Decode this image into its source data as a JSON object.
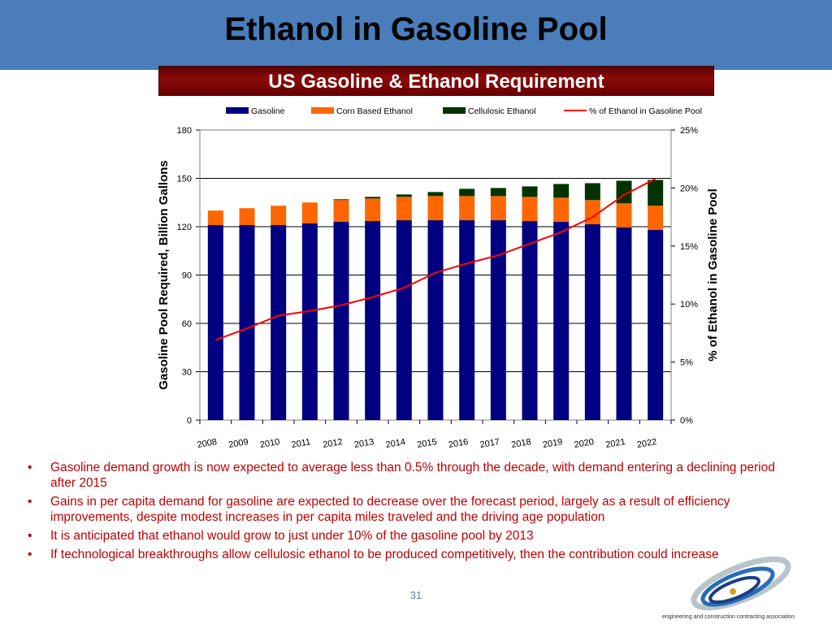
{
  "slide": {
    "title": "Ethanol in Gasoline Pool",
    "page_number": "31"
  },
  "chart_banner": "US Gasoline & Ethanol Requirement",
  "chart_data": {
    "type": "bar",
    "stacked": true,
    "title": "US Gasoline & Ethanol Requirement",
    "categories": [
      "2008",
      "2009",
      "2010",
      "2011",
      "2012",
      "2013",
      "2014",
      "2015",
      "2016",
      "2017",
      "2018",
      "2019",
      "2020",
      "2021",
      "2022"
    ],
    "series": [
      {
        "name": "Gasoline",
        "color": "#000080",
        "values": [
          121,
          121,
          121,
          122,
          123,
          123.5,
          124,
          124,
          124,
          124,
          123.5,
          123,
          121.5,
          119.5,
          118
        ]
      },
      {
        "name": "Corn Based Ethanol",
        "color": "#ff6600",
        "values": [
          9,
          10.5,
          12,
          13,
          13.5,
          14,
          14.5,
          15,
          15,
          15,
          15,
          15,
          15,
          15,
          15
        ]
      },
      {
        "name": "Cellulosic Ethanol",
        "color": "#003300",
        "values": [
          0,
          0,
          0,
          0,
          0.5,
          1,
          1.5,
          2.5,
          4.5,
          5,
          6.5,
          8.5,
          10.5,
          14,
          16
        ]
      }
    ],
    "line_series": {
      "name": "% of Ethanol in Gasoline Pool",
      "color": "#ff0000",
      "axis": "right",
      "values": [
        6.9,
        7.9,
        9.0,
        9.4,
        9.9,
        10.6,
        11.4,
        12.7,
        13.5,
        14.2,
        15.2,
        16.2,
        17.5,
        19.4,
        20.8
      ]
    },
    "ylabel": "Gasoline Pool Required, Billion Gallons",
    "y2label": "% of Ethanol in Gasoline Pool",
    "ylim": [
      0,
      180
    ],
    "yticks": [
      0,
      30,
      60,
      90,
      120,
      150,
      180
    ],
    "y2lim": [
      0,
      25
    ],
    "y2ticks": [
      "0%",
      "5%",
      "10%",
      "15%",
      "20%",
      "25%"
    ],
    "grid": true,
    "legend_position": "top"
  },
  "bullets": [
    "Gasoline demand growth is now expected to average less than 0.5% through the decade, with demand entering a declining period after 2015",
    "Gains in per capita demand for gasoline are expected to decrease over the forecast period, largely as a result of efficiency improvements, despite modest increases in per capita miles traveled and the driving age population",
    "It is anticipated that ethanol would grow to just under 10% of the gasoline pool by 2013",
    "If technological breakthroughs allow cellulosic ethanol to be produced competitively, then the contribution could increase"
  ],
  "logo": {
    "caption": "engineering and construction contracting association"
  },
  "colors": {
    "header": "#4a7dba",
    "banner": "#7a0000",
    "bullet_text": "#c00000"
  }
}
